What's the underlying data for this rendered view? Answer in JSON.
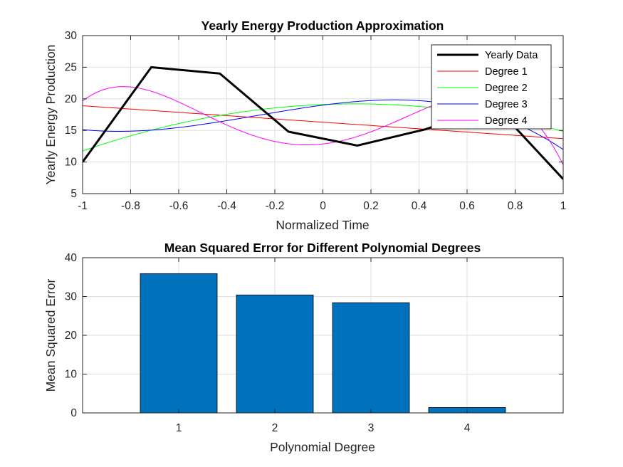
{
  "chart_data": [
    {
      "type": "line",
      "title": "Yearly Energy Production Approximation",
      "xlabel": "Normalized Time",
      "ylabel": "Yearly Energy Production",
      "xlim": [
        -1,
        1
      ],
      "ylim": [
        5,
        30
      ],
      "xticks": [
        "-1",
        "-0.8",
        "-0.6",
        "-0.4",
        "-0.2",
        "0",
        "0.2",
        "0.4",
        "0.6",
        "0.8",
        "1"
      ],
      "yticks": [
        "5",
        "10",
        "15",
        "20",
        "25",
        "30"
      ],
      "grid": true,
      "legend_location": "top-right",
      "series": [
        {
          "name": "Yearly Data",
          "color": "#000000",
          "style": "data",
          "x": [
            -1,
            -0.714,
            -0.429,
            -0.143,
            0.143,
            0.429,
            0.714,
            1
          ],
          "y": [
            10,
            25,
            24,
            14.8,
            12.6,
            15.2,
            19,
            7.3
          ]
        },
        {
          "name": "Degree 1",
          "color": "#ff0000",
          "coefficients": [
            16.3,
            -2.6
          ]
        },
        {
          "name": "Degree 2",
          "color": "#00ff00",
          "coefficients": [
            19.1,
            1.55,
            -5.8
          ]
        },
        {
          "name": "Degree 3",
          "color": "#0000ff",
          "coefficients": [
            19.0,
            5.0,
            -5.45,
            -6.58
          ]
        },
        {
          "name": "Degree 4",
          "color": "#ff00ff",
          "coefficients": [
            12.86,
            4.2,
            30.07,
            -9.25,
            -28.33
          ]
        }
      ]
    },
    {
      "type": "bar",
      "title": "Mean Squared Error for Different Polynomial Degrees",
      "xlabel": "Polynomial Degree",
      "ylabel": "Mean Squared Error",
      "categories": [
        "1",
        "2",
        "3",
        "4"
      ],
      "values": [
        35.9,
        30.4,
        28.4,
        1.4
      ],
      "xlim": [
        0,
        5
      ],
      "ylim": [
        0,
        40
      ],
      "yticks": [
        "0",
        "10",
        "20",
        "30",
        "40"
      ],
      "bar_color": "#0072bd",
      "grid": true
    }
  ]
}
